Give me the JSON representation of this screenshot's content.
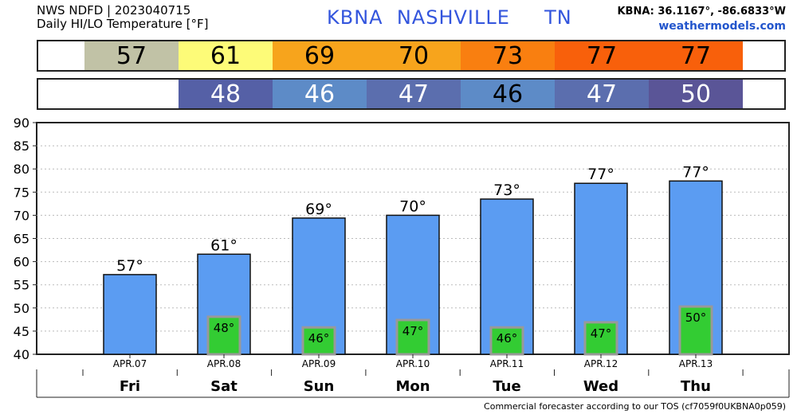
{
  "header": {
    "line1": "NWS NDFD | 2023040715",
    "line2": "Daily HI/LO Temperature [°F]",
    "station_id": "KBNA",
    "city": "NASHVILLE",
    "state": "TN",
    "coords": "KBNA: 36.1167°, -86.6833°W",
    "site": "weathermodels.com"
  },
  "hi_strip": [
    {
      "value": "57",
      "color": "#c1c2a6",
      "text_color": "#000000"
    },
    {
      "value": "61",
      "color": "#fdfb78",
      "text_color": "#000000"
    },
    {
      "value": "69",
      "color": "#f7a41c",
      "text_color": "#000000"
    },
    {
      "value": "70",
      "color": "#f7a41c",
      "text_color": "#000000"
    },
    {
      "value": "73",
      "color": "#f97f10",
      "text_color": "#000000"
    },
    {
      "value": "77",
      "color": "#f8600b",
      "text_color": "#000000"
    },
    {
      "value": "77",
      "color": "#f8600b",
      "text_color": "#000000"
    }
  ],
  "lo_strip": [
    {
      "value": "",
      "color": "#ffffff",
      "text_color": "#000000"
    },
    {
      "value": "48",
      "color": "#5560a6",
      "text_color": "#ffffff"
    },
    {
      "value": "46",
      "color": "#5d8bc7",
      "text_color": "#ffffff"
    },
    {
      "value": "47",
      "color": "#5b6eae",
      "text_color": "#ffffff"
    },
    {
      "value": "46",
      "color": "#5d8bc7",
      "text_color": "#000000"
    },
    {
      "value": "47",
      "color": "#5b6eae",
      "text_color": "#ffffff"
    },
    {
      "value": "50",
      "color": "#5a5597",
      "text_color": "#ffffff"
    }
  ],
  "chart_data": {
    "type": "bar",
    "categories": [
      "APR.07",
      "APR.08",
      "APR.09",
      "APR.10",
      "APR.11",
      "APR.12",
      "APR.13"
    ],
    "days": [
      "Fri",
      "Sat",
      "Sun",
      "Mon",
      "Tue",
      "Wed",
      "Thu"
    ],
    "series": [
      {
        "values": [
          57,
          61,
          69,
          70,
          73,
          77,
          77
        ],
        "labels": [
          "57°",
          "61°",
          "69°",
          "70°",
          "73°",
          "77°",
          "77°"
        ],
        "color": "#5b9cf2"
      },
      {
        "values": [
          null,
          48,
          46,
          47,
          46,
          47,
          50
        ],
        "labels": [
          "",
          "48°",
          "46°",
          "47°",
          "46°",
          "47°",
          "50°"
        ],
        "color": "#33cc33"
      }
    ],
    "hi_bar_tops": [
      57.2,
      61.6,
      69.4,
      70.0,
      73.5,
      76.9,
      77.4
    ],
    "lo_bar_tops": [
      null,
      48.1,
      45.8,
      47.4,
      45.8,
      46.9,
      50.3
    ],
    "ylim": [
      40,
      90
    ],
    "yticks": [
      "40",
      "45",
      "50",
      "55",
      "60",
      "65",
      "70",
      "75",
      "80",
      "85",
      "90"
    ],
    "grid": true,
    "xlabel": "",
    "ylabel": ""
  },
  "footer": "Commercial forecaster according to our TOS (cf7059f0UKBNA0p059)"
}
